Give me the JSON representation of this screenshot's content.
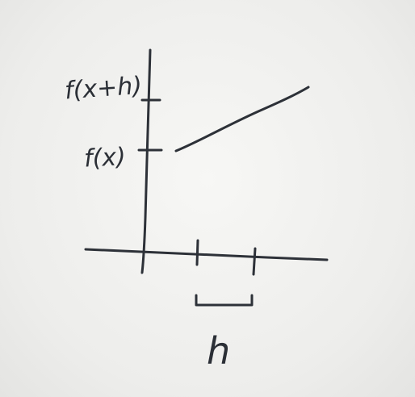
{
  "labels": {
    "f_x_plus_h": "f(x+h)",
    "f_x": "f(x)",
    "h": "h"
  },
  "colors": {
    "ink": "#2d3138",
    "board": "#f2f2f0"
  }
}
